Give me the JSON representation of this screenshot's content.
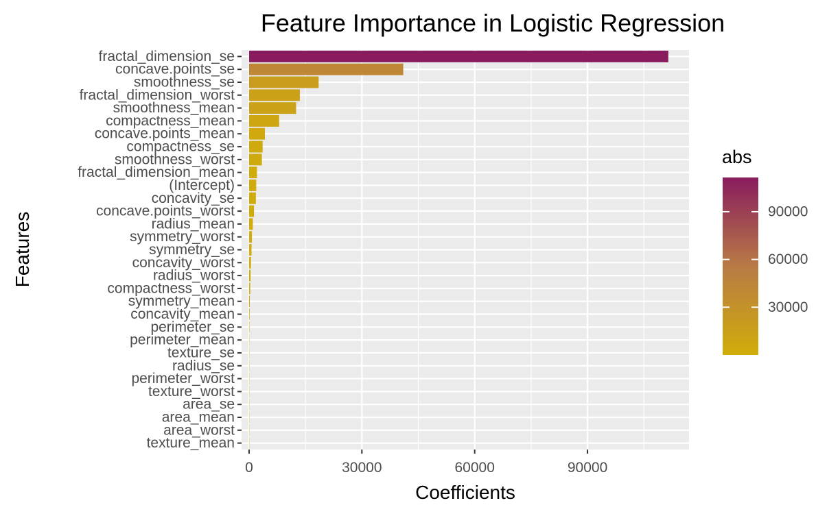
{
  "chart_data": {
    "type": "bar",
    "orientation": "horizontal",
    "title": "Feature Importance in Logistic Regression",
    "xlabel": "Coefficients",
    "ylabel": "Features",
    "xlim": [
      -2000,
      117000
    ],
    "x_ticks": [
      0,
      30000,
      60000,
      90000
    ],
    "x_tick_labels": [
      "0",
      "30000",
      "60000",
      "90000"
    ],
    "grid": true,
    "legend_position": "right",
    "categories": [
      "fractal_dimension_se",
      "concave.points_se",
      "smoothness_se",
      "fractal_dimension_worst",
      "smoothness_mean",
      "compactness_mean",
      "concave.points_mean",
      "compactness_se",
      "smoothness_worst",
      "fractal_dimension_mean",
      "(Intercept)",
      "concavity_se",
      "concave.points_worst",
      "radius_mean",
      "symmetry_worst",
      "symmetry_se",
      "concavity_worst",
      "radius_worst",
      "compactness_worst",
      "symmetry_mean",
      "concavity_mean",
      "perimeter_se",
      "perimeter_mean",
      "texture_se",
      "radius_se",
      "perimeter_worst",
      "texture_worst",
      "area_se",
      "area_mean",
      "area_worst",
      "texture_mean"
    ],
    "values": [
      111500,
      41000,
      18500,
      13500,
      12500,
      8000,
      4200,
      3600,
      3400,
      2100,
      1900,
      1800,
      1300,
      1000,
      750,
      650,
      500,
      400,
      300,
      200,
      150,
      100,
      50,
      40,
      30,
      25,
      20,
      15,
      10,
      8,
      5
    ],
    "legend": {
      "title": "abs",
      "color_low": "#d1ad0a",
      "color_mid": "#b87a45",
      "color_high": "#891c5e",
      "range": [
        0,
        111500
      ],
      "breaks": [
        30000,
        60000,
        90000
      ],
      "break_labels": [
        "30000",
        "60000",
        "90000"
      ]
    },
    "colors": {
      "panel_background": "#ebebeb",
      "grid_line": "#ffffff",
      "tick_text": "#4d4d4d",
      "tick_mark": "#333333"
    }
  }
}
